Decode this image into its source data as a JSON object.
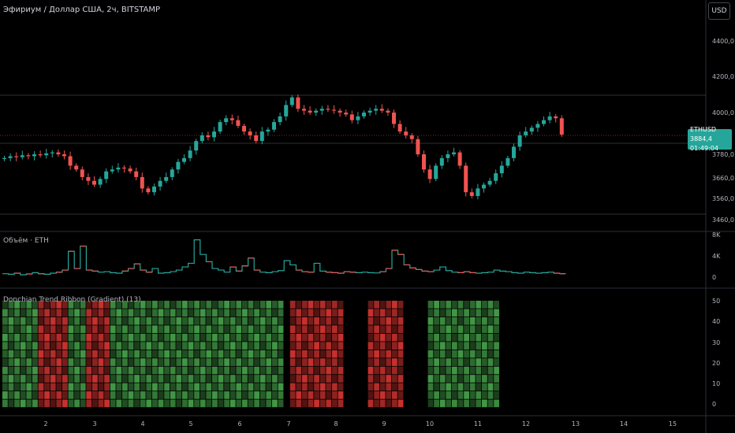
{
  "header": {
    "title": "Эфириум / Доллар США, 2ч, BITSTAMP",
    "currency": "USD"
  },
  "price_tag": {
    "symbol": "ETHUSD",
    "price": "3884,4",
    "countdown": "01:49:04"
  },
  "panes": {
    "volume_label": "Объём · ETH",
    "indicator_label": "Donchian Trend Ribbon (Gradient) (13)"
  },
  "colors": {
    "up": "#26a69a",
    "down": "#ef5350",
    "bg": "#000000",
    "grid": "#2a2e39",
    "ribbon_green": "#4caf50",
    "ribbon_red": "#e53935"
  },
  "chart_data": {
    "type": "candlestick",
    "x_ticks": [
      "2",
      "3",
      "4",
      "5",
      "6",
      "7",
      "8",
      "9",
      "10",
      "11",
      "12",
      "13",
      "14",
      "15"
    ],
    "price_axis": [
      "4400,0",
      "4200,0",
      "4000,0",
      "3780,0",
      "3660,0",
      "3560,0",
      "3460,0"
    ],
    "volume_axis": [
      "8K",
      "4K",
      "0"
    ],
    "indicator_axis": [
      "50",
      "40",
      "30",
      "20",
      "10",
      "0"
    ],
    "closes": [
      3760,
      3770,
      3765,
      3775,
      3770,
      3780,
      3775,
      3785,
      3790,
      3780,
      3770,
      3720,
      3700,
      3660,
      3640,
      3620,
      3650,
      3690,
      3700,
      3710,
      3705,
      3690,
      3660,
      3600,
      3580,
      3610,
      3640,
      3660,
      3700,
      3740,
      3760,
      3800,
      3850,
      3880,
      3870,
      3900,
      3950,
      3970,
      3960,
      3930,
      3900,
      3880,
      3850,
      3900,
      3910,
      3950,
      3980,
      4040,
      4080,
      4020,
      4010,
      4000,
      4010,
      4020,
      4015,
      4010,
      4000,
      3990,
      3960,
      3980,
      4000,
      4010,
      4020,
      4010,
      4000,
      3940,
      3900,
      3880,
      3860,
      3780,
      3700,
      3650,
      3720,
      3760,
      3780,
      3790,
      3720,
      3580,
      3560,
      3600,
      3620,
      3640,
      3680,
      3720,
      3760,
      3820,
      3880,
      3900,
      3920,
      3940,
      3960,
      3980,
      3970,
      3884
    ],
    "volumes": [
      500,
      400,
      600,
      300,
      450,
      700,
      500,
      400,
      600,
      800,
      1200,
      4800,
      1500,
      5800,
      1200,
      1000,
      800,
      900,
      700,
      600,
      1000,
      1500,
      2400,
      1200,
      800,
      1500,
      600,
      700,
      900,
      1200,
      1800,
      2500,
      7000,
      4200,
      2800,
      1500,
      1200,
      800,
      1800,
      1000,
      2000,
      3500,
      1200,
      800,
      700,
      900,
      1100,
      3000,
      2200,
      1200,
      900,
      800,
      2500,
      1000,
      800,
      700,
      600,
      900,
      800,
      700,
      800,
      700,
      650,
      900,
      1500,
      5000,
      4200,
      2200,
      1600,
      1300,
      1000,
      900,
      1200,
      1800,
      1100,
      800,
      700,
      900,
      700,
      600,
      700,
      800,
      1200,
      1000,
      900,
      700,
      600,
      800,
      700,
      600,
      700,
      800,
      600,
      500
    ],
    "ribbon": [
      1,
      1,
      1,
      1,
      1,
      1,
      -1,
      -1,
      -1,
      -1,
      -1,
      1,
      1,
      1,
      -1,
      -1,
      -1,
      -1,
      1,
      1,
      1,
      1,
      1,
      1,
      1,
      1,
      1,
      1,
      1,
      1,
      1,
      1,
      1,
      1,
      1,
      1,
      1,
      1,
      1,
      1,
      1,
      1,
      1,
      1,
      1,
      1,
      1,
      0,
      -1,
      -1,
      -1,
      -1,
      -1,
      -1,
      -1,
      -1,
      -1,
      0,
      0,
      0,
      0,
      -1,
      -1,
      -1,
      -1,
      -1,
      -1,
      0,
      0,
      0,
      0,
      1,
      1,
      1,
      1,
      1,
      1,
      1,
      1,
      1,
      1,
      1,
      1,
      0,
      0,
      0,
      0,
      0,
      0,
      0,
      0,
      0,
      0,
      0
    ]
  }
}
